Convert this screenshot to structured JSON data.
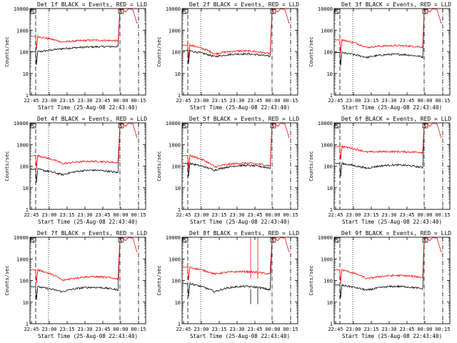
{
  "chart_data": [
    {
      "type": "line",
      "title": "Det 1f BLACK = Events, RED = LLD",
      "xlabel": "Start Time (25-Aug-08 22:43:40)",
      "ylabel": "Counts/sec",
      "panel": "1f",
      "series": [
        {
          "name": "Events",
          "color": "#000000",
          "y_start": 100,
          "y_flat": 140,
          "y_mid": 150,
          "y_end": 200
        },
        {
          "name": "LLD",
          "color": "#ff0000",
          "y_start": 500,
          "y_flat": 280,
          "y_mid": 320,
          "y_end": 350
        }
      ]
    },
    {
      "type": "line",
      "title": "Det 2f BLACK = Events, RED = LLD",
      "xlabel": "Start Time (25-Aug-08 22:43:40)",
      "ylabel": "Counts/sec",
      "panel": "2f",
      "series": [
        {
          "name": "Events",
          "color": "#000000",
          "y_start": 110,
          "y_flat": 60,
          "y_mid": 80,
          "y_end": 60
        },
        {
          "name": "LLD",
          "color": "#ff0000",
          "y_start": 200,
          "y_flat": 80,
          "y_mid": 110,
          "y_end": 80
        }
      ]
    },
    {
      "type": "line",
      "title": "Det 3f BLACK = Events, RED = LLD",
      "xlabel": "Start Time (25-Aug-08 22:43:40)",
      "ylabel": "Counts/sec",
      "panel": "3f",
      "series": [
        {
          "name": "Events",
          "color": "#000000",
          "y_start": 90,
          "y_flat": 55,
          "y_mid": 75,
          "y_end": 60
        },
        {
          "name": "LLD",
          "color": "#ff0000",
          "y_start": 350,
          "y_flat": 160,
          "y_mid": 190,
          "y_end": 170
        }
      ]
    },
    {
      "type": "line",
      "title": "Det 4f BLACK = Events, RED = LLD",
      "xlabel": "Start Time (25-Aug-08 22:43:40)",
      "ylabel": "Counts/sec",
      "panel": "4f",
      "series": [
        {
          "name": "Events",
          "color": "#000000",
          "y_start": 70,
          "y_flat": 40,
          "y_mid": 60,
          "y_end": 55
        },
        {
          "name": "LLD",
          "color": "#ff0000",
          "y_start": 300,
          "y_flat": 130,
          "y_mid": 160,
          "y_end": 150
        }
      ]
    },
    {
      "type": "line",
      "title": "Det 5f BLACK = Events, RED = LLD",
      "xlabel": "Start Time (25-Aug-08 22:43:40)",
      "ylabel": "Counts/sec",
      "panel": "5f",
      "series": [
        {
          "name": "Events",
          "color": "#000000",
          "y_start": 130,
          "y_flat": 65,
          "y_mid": 100,
          "y_end": 90
        },
        {
          "name": "LLD",
          "color": "#ff0000",
          "y_start": 300,
          "y_flat": 90,
          "y_mid": 130,
          "y_end": 110
        }
      ]
    },
    {
      "type": "line",
      "title": "Det 6f BLACK = Events, RED = LLD",
      "xlabel": "Start Time (25-Aug-08 22:43:40)",
      "ylabel": "Counts/sec",
      "panel": "6f",
      "series": [
        {
          "name": "Events",
          "color": "#000000",
          "y_start": 130,
          "y_flat": 80,
          "y_mid": 110,
          "y_end": 90
        },
        {
          "name": "LLD",
          "color": "#ff0000",
          "y_start": 800,
          "y_flat": 450,
          "y_mid": 480,
          "y_end": 420
        }
      ]
    },
    {
      "type": "line",
      "title": "Det 7f BLACK = Events, RED = LLD",
      "xlabel": "Start Time (25-Aug-08 22:43:40)",
      "ylabel": "Counts/sec",
      "panel": "7f",
      "series": [
        {
          "name": "Events",
          "color": "#000000",
          "y_start": 50,
          "y_flat": 30,
          "y_mid": 45,
          "y_end": 40
        },
        {
          "name": "LLD",
          "color": "#ff0000",
          "y_start": 300,
          "y_flat": 100,
          "y_mid": 140,
          "y_end": 130
        }
      ]
    },
    {
      "type": "line",
      "title": "Det 8f BLACK = Events, RED = LLD",
      "xlabel": "Start Time (25-Aug-08 22:43:40)",
      "ylabel": "Counts/sec",
      "panel": "8f",
      "series": [
        {
          "name": "Events",
          "color": "#000000",
          "y_start": 70,
          "y_flat": 30,
          "y_mid": 50,
          "y_end": 40
        },
        {
          "name": "LLD",
          "color": "#ff0000",
          "y_start": 400,
          "y_flat": 200,
          "y_mid": 260,
          "y_end": 190
        }
      ]
    },
    {
      "type": "line",
      "title": "Det 9f BLACK = Events, RED = LLD",
      "xlabel": "Start Time (25-Aug-08 22:43:40)",
      "ylabel": "Counts/sec",
      "panel": "9f",
      "series": [
        {
          "name": "Events",
          "color": "#000000",
          "y_start": 60,
          "y_flat": 35,
          "y_mid": 50,
          "y_end": 45
        },
        {
          "name": "LLD",
          "color": "#ff0000",
          "y_start": 300,
          "y_flat": 120,
          "y_mid": 160,
          "y_end": 150
        }
      ]
    }
  ],
  "x_ticks": [
    "22:45",
    "23:00",
    "23:15",
    "23:30",
    "23:45",
    "00:00",
    "00:15"
  ],
  "y_ticks": [
    "1",
    "10",
    "100",
    "1000",
    "10000"
  ],
  "ylim": [
    1,
    10000
  ],
  "y_scale": "log",
  "marker_label": "S"
}
